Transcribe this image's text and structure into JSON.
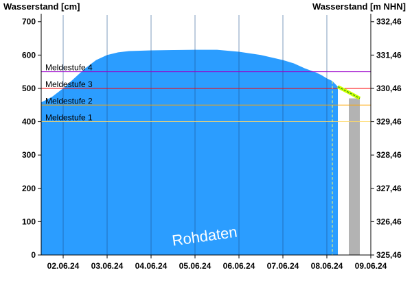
{
  "chart_data": {
    "type": "area",
    "title": "",
    "ylabel_left": "Wasserstand [cm]",
    "ylabel_right": "Wasserstand [m NHN]",
    "ylim": [
      0,
      720
    ],
    "y_ticks_left": [
      "0",
      "100",
      "200",
      "300",
      "400",
      "500",
      "600",
      "700"
    ],
    "y_ticks_left_values": [
      0,
      100,
      200,
      300,
      400,
      500,
      600,
      700
    ],
    "y_ticks_right": [
      "325,46",
      "326,46",
      "327,46",
      "328,46",
      "329,46",
      "330,46",
      "331,46",
      "332,46"
    ],
    "x_range_days": [
      "01.06.24 12:00",
      "09.06.24 00:00"
    ],
    "x_tick_labels": [
      "02.06.24",
      "03.06.24",
      "04.06.24",
      "05.06.24",
      "06.06.24",
      "07.06.24",
      "08.06.24",
      "09.06.24"
    ],
    "series": [
      {
        "kind": "measured",
        "x": [
          "01.06.24 12:00",
          "01.06.24 18:00",
          "02.06.24 00:00",
          "02.06.24 06:00",
          "02.06.24 12:00",
          "02.06.24 18:00",
          "03.06.24 00:00",
          "03.06.24 06:00",
          "03.06.24 12:00",
          "03.06.24 18:00",
          "04.06.24 00:00",
          "04.06.24 12:00",
          "05.06.24 00:00",
          "05.06.24 12:00",
          "06.06.24 00:00",
          "06.06.24 12:00",
          "07.06.24 00:00",
          "07.06.24 06:00",
          "07.06.24 12:00",
          "07.06.24 18:00",
          "07.06.24 21:00",
          "08.06.24 00:00",
          "08.06.24 03:00",
          "08.06.24 06:00"
        ],
        "y": [
          458,
          475,
          500,
          530,
          560,
          585,
          600,
          608,
          612,
          613,
          614,
          615,
          616,
          616,
          610,
          600,
          585,
          575,
          560,
          548,
          540,
          530,
          522,
          505
        ],
        "color": "#2b9dff"
      },
      {
        "kind": "forecast",
        "x": [
          "08.06.24 06:00",
          "08.06.24 12:00",
          "08.06.24 18:00"
        ],
        "y": [
          505,
          488,
          470
        ],
        "color": "#ccff00"
      }
    ],
    "forecast_shade_range": [
      "08.06.24 12:00",
      "08.06.24 18:00"
    ],
    "forecast_marker_x": "08.06.24 03:00",
    "thresholds": [
      {
        "label": "Meldestufe 4",
        "value": 550,
        "color": "#9900cc"
      },
      {
        "label": "Meldestufe 3",
        "value": 500,
        "color": "#ff0000"
      },
      {
        "label": "Meldestufe 2",
        "value": 450,
        "color": "#ffa500"
      },
      {
        "label": "Meldestufe 1",
        "value": 400,
        "color": "#ffd966"
      }
    ],
    "watermark": "Rohdaten",
    "grid": true
  }
}
